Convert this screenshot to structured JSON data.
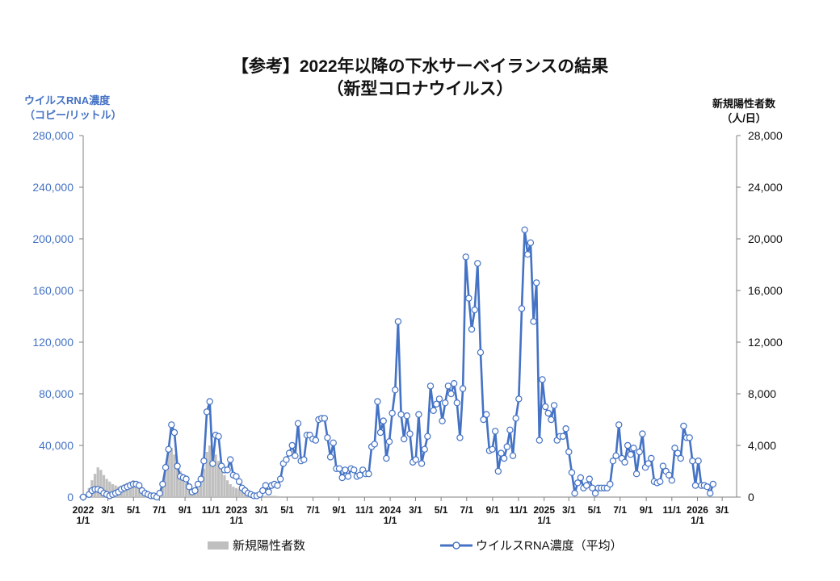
{
  "title": {
    "line1": "【参考】2022年以降の下水サーベイランスの結果",
    "line2": "（新型コロナウイルス）"
  },
  "left_axis_title": {
    "line1": "ウイルスRNA濃度",
    "line2": "（コピー/リットル）"
  },
  "right_axis_title": {
    "line1": "新規陽性者数",
    "line2": "（人/日）"
  },
  "legend": {
    "bars": "新規陽性者数",
    "line": "ウイルスRNA濃度（平均）"
  },
  "colors": {
    "line": "#4472C4",
    "bars": "#BFBFBF",
    "left_axis_text": "#4472C4",
    "right_axis_text": "#111111"
  },
  "chart_data": {
    "type": "line",
    "x_unit": "week index from 2022/1/1",
    "xlim": [
      0,
      222
    ],
    "y_left": {
      "label": "ウイルスRNA濃度（コピー/リットル）",
      "range": [
        0,
        280000
      ],
      "ticks": [
        "0",
        "40,000",
        "80,000",
        "120,000",
        "160,000",
        "200,000",
        "240,000",
        "280,000"
      ]
    },
    "y_right": {
      "label": "新規陽性者数（人/日）",
      "range": [
        0,
        28000
      ],
      "ticks": [
        "0",
        "4,000",
        "8,000",
        "12,000",
        "16,000",
        "20,000",
        "24,000",
        "28,000"
      ]
    },
    "x_ticks": [
      {
        "label": "2022",
        "label2": "1/1",
        "x": 0
      },
      {
        "label": "3/1",
        "x": 8.4
      },
      {
        "label": "5/1",
        "x": 17.1
      },
      {
        "label": "7/1",
        "x": 25.9
      },
      {
        "label": "9/1",
        "x": 34.6
      },
      {
        "label": "11/1",
        "x": 43.4
      },
      {
        "label": "2023",
        "label2": "1/1",
        "x": 52.1
      },
      {
        "label": "3/1",
        "x": 60.6
      },
      {
        "label": "5/1",
        "x": 69.3
      },
      {
        "label": "7/1",
        "x": 78.1
      },
      {
        "label": "9/1",
        "x": 86.9
      },
      {
        "label": "11/1",
        "x": 95.6
      },
      {
        "label": "2024",
        "label2": "1/1",
        "x": 104.3
      },
      {
        "label": "3/1",
        "x": 112.9
      },
      {
        "label": "5/1",
        "x": 121.6
      },
      {
        "label": "7/1",
        "x": 130.3
      },
      {
        "label": "9/1",
        "x": 139.1
      },
      {
        "label": "11/1",
        "x": 147.9
      },
      {
        "label": "2025",
        "label2": "1/1",
        "x": 156.6
      },
      {
        "label": "3/1",
        "x": 165.0
      },
      {
        "label": "5/1",
        "x": 173.7
      },
      {
        "label": "7/1",
        "x": 182.4
      },
      {
        "label": "9/1",
        "x": 191.3
      },
      {
        "label": "11/1",
        "x": 200.0
      },
      {
        "label": "2026",
        "label2": "1/1",
        "x": 208.7
      },
      {
        "label": "3/1",
        "x": 217.1
      }
    ],
    "series": [
      {
        "name": "ウイルスRNA濃度（平均）",
        "axis": "left",
        "points": [
          [
            0,
            0
          ],
          [
            2,
            2000
          ],
          [
            3,
            5000
          ],
          [
            4,
            6000
          ],
          [
            5,
            6000
          ],
          [
            6,
            5000
          ],
          [
            7,
            3000
          ],
          [
            8,
            2000
          ],
          [
            9,
            1000
          ],
          [
            10,
            2000
          ],
          [
            11,
            3000
          ],
          [
            12,
            4000
          ],
          [
            13,
            6000
          ],
          [
            14,
            7000
          ],
          [
            15,
            8000
          ],
          [
            16,
            9000
          ],
          [
            17,
            10000
          ],
          [
            18,
            10000
          ],
          [
            19,
            9000
          ],
          [
            20,
            5000
          ],
          [
            21,
            3000
          ],
          [
            22,
            2000
          ],
          [
            23,
            1000
          ],
          [
            24,
            1000
          ],
          [
            25,
            0
          ],
          [
            26,
            3000
          ],
          [
            27,
            10000
          ],
          [
            28,
            23000
          ],
          [
            29,
            37000
          ],
          [
            30,
            56000
          ],
          [
            31,
            50000
          ],
          [
            32,
            24000
          ],
          [
            33,
            16000
          ],
          [
            34,
            15000
          ],
          [
            35,
            14000
          ],
          [
            36,
            8000
          ],
          [
            37,
            4000
          ],
          [
            38,
            5000
          ],
          [
            39,
            10000
          ],
          [
            40,
            14000
          ],
          [
            41,
            28000
          ],
          [
            42,
            66000
          ],
          [
            43,
            74000
          ],
          [
            44,
            26000
          ],
          [
            45,
            48000
          ],
          [
            46,
            47000
          ],
          [
            47,
            24000
          ],
          [
            48,
            21000
          ],
          [
            49,
            21000
          ],
          [
            50,
            29000
          ],
          [
            51,
            17000
          ],
          [
            52,
            16000
          ],
          [
            53,
            12000
          ],
          [
            54,
            7000
          ],
          [
            55,
            5000
          ],
          [
            56,
            3000
          ],
          [
            57,
            2000
          ],
          [
            58,
            1000
          ],
          [
            59,
            1000
          ],
          [
            60,
            2000
          ],
          [
            61,
            5000
          ],
          [
            62,
            9000
          ],
          [
            63,
            4000
          ],
          [
            64,
            9000
          ],
          [
            65,
            10000
          ],
          [
            66,
            9000
          ],
          [
            67,
            14000
          ],
          [
            68,
            26000
          ],
          [
            69,
            29000
          ],
          [
            70,
            34000
          ],
          [
            71,
            40000
          ],
          [
            72,
            32000
          ],
          [
            73,
            57000
          ],
          [
            74,
            28000
          ],
          [
            75,
            29000
          ],
          [
            76,
            48000
          ],
          [
            77,
            48000
          ],
          [
            78,
            45000
          ],
          [
            79,
            44000
          ],
          [
            80,
            60000
          ],
          [
            81,
            61000
          ],
          [
            82,
            61000
          ],
          [
            83,
            46000
          ],
          [
            84,
            31000
          ],
          [
            85,
            42000
          ],
          [
            86,
            22000
          ],
          [
            87,
            22000
          ],
          [
            88,
            15000
          ],
          [
            89,
            21000
          ],
          [
            90,
            16000
          ],
          [
            91,
            22000
          ],
          [
            92,
            21000
          ],
          [
            93,
            16000
          ],
          [
            94,
            17000
          ],
          [
            95,
            21000
          ],
          [
            96,
            18000
          ],
          [
            97,
            18000
          ],
          [
            98,
            39000
          ],
          [
            99,
            41000
          ],
          [
            100,
            74000
          ],
          [
            101,
            50000
          ],
          [
            102,
            59000
          ],
          [
            103,
            30000
          ],
          [
            104,
            43000
          ],
          [
            105,
            65000
          ],
          [
            106,
            83000
          ],
          [
            107,
            136000
          ],
          [
            108,
            64000
          ],
          [
            109,
            45000
          ],
          [
            110,
            63000
          ],
          [
            111,
            49000
          ],
          [
            112,
            27000
          ],
          [
            113,
            29000
          ],
          [
            114,
            64000
          ],
          [
            115,
            26000
          ],
          [
            116,
            37000
          ],
          [
            117,
            47000
          ],
          [
            118,
            86000
          ],
          [
            119,
            67000
          ],
          [
            120,
            72000
          ],
          [
            121,
            76000
          ],
          [
            122,
            59000
          ],
          [
            123,
            73000
          ],
          [
            124,
            86000
          ],
          [
            125,
            80000
          ],
          [
            126,
            88000
          ],
          [
            127,
            73000
          ],
          [
            128,
            46000
          ],
          [
            129,
            84000
          ],
          [
            130,
            186000
          ],
          [
            131,
            154000
          ],
          [
            132,
            130000
          ],
          [
            133,
            145000
          ],
          [
            134,
            181000
          ],
          [
            135,
            112000
          ],
          [
            136,
            60000
          ],
          [
            137,
            64000
          ],
          [
            138,
            36000
          ],
          [
            139,
            37000
          ],
          [
            140,
            51000
          ],
          [
            141,
            20000
          ],
          [
            142,
            34000
          ],
          [
            143,
            30000
          ],
          [
            144,
            39000
          ],
          [
            145,
            52000
          ],
          [
            146,
            32000
          ],
          [
            147,
            61000
          ],
          [
            148,
            76000
          ],
          [
            149,
            146000
          ],
          [
            150,
            207000
          ],
          [
            151,
            188000
          ],
          [
            152,
            197000
          ],
          [
            153,
            136000
          ],
          [
            154,
            166000
          ],
          [
            155,
            44000
          ],
          [
            156,
            91000
          ],
          [
            157,
            70000
          ],
          [
            158,
            65000
          ],
          [
            159,
            60000
          ],
          [
            160,
            71000
          ],
          [
            161,
            44000
          ],
          [
            162,
            47000
          ],
          [
            163,
            47000
          ],
          [
            164,
            53000
          ],
          [
            165,
            35000
          ],
          [
            166,
            19000
          ],
          [
            167,
            3000
          ],
          [
            168,
            11000
          ],
          [
            169,
            15000
          ],
          [
            170,
            7000
          ],
          [
            171,
            9000
          ],
          [
            172,
            14000
          ],
          [
            173,
            7000
          ],
          [
            174,
            3000
          ],
          [
            175,
            7000
          ],
          [
            176,
            7000
          ],
          [
            177,
            7000
          ],
          [
            178,
            7000
          ],
          [
            179,
            10000
          ],
          [
            180,
            28000
          ],
          [
            181,
            32000
          ],
          [
            182,
            56000
          ],
          [
            183,
            30000
          ],
          [
            184,
            27000
          ],
          [
            185,
            40000
          ],
          [
            186,
            33000
          ],
          [
            187,
            38000
          ],
          [
            188,
            18000
          ],
          [
            189,
            35000
          ],
          [
            190,
            49000
          ],
          [
            191,
            23000
          ],
          [
            192,
            26000
          ],
          [
            193,
            30000
          ],
          [
            194,
            12000
          ],
          [
            195,
            11000
          ],
          [
            196,
            12000
          ],
          [
            197,
            24000
          ],
          [
            198,
            20000
          ],
          [
            199,
            17000
          ],
          [
            200,
            13000
          ],
          [
            201,
            38000
          ],
          [
            202,
            34000
          ],
          [
            203,
            30000
          ],
          [
            204,
            55000
          ],
          [
            205,
            46000
          ],
          [
            206,
            46000
          ],
          [
            207,
            28000
          ],
          [
            208,
            9000
          ],
          [
            209,
            28000
          ],
          [
            210,
            9000
          ],
          [
            211,
            9000
          ],
          [
            212,
            8000
          ],
          [
            213,
            3000
          ],
          [
            214,
            10000
          ]
        ]
      },
      {
        "name": "新規陽性者数",
        "axis": "right",
        "type": "bar",
        "points": [
          [
            0,
            100
          ],
          [
            2,
            700
          ],
          [
            3,
            1300
          ],
          [
            4,
            1800
          ],
          [
            5,
            2300
          ],
          [
            6,
            2100
          ],
          [
            7,
            1700
          ],
          [
            8,
            1400
          ],
          [
            9,
            1200
          ],
          [
            10,
            1000
          ],
          [
            11,
            900
          ],
          [
            12,
            800
          ],
          [
            13,
            900
          ],
          [
            14,
            1000
          ],
          [
            15,
            1100
          ],
          [
            16,
            1200
          ],
          [
            17,
            1300
          ],
          [
            18,
            1200
          ],
          [
            19,
            1000
          ],
          [
            20,
            700
          ],
          [
            21,
            500
          ],
          [
            22,
            300
          ],
          [
            23,
            200
          ],
          [
            24,
            150
          ],
          [
            25,
            200
          ],
          [
            26,
            500
          ],
          [
            27,
            1200
          ],
          [
            28,
            2400
          ],
          [
            29,
            3500
          ],
          [
            30,
            3800
          ],
          [
            31,
            3300
          ],
          [
            32,
            2600
          ],
          [
            33,
            2000
          ],
          [
            34,
            1500
          ],
          [
            35,
            1100
          ],
          [
            36,
            800
          ],
          [
            37,
            600
          ],
          [
            38,
            500
          ],
          [
            39,
            700
          ],
          [
            40,
            1200
          ],
          [
            41,
            2200
          ],
          [
            42,
            3500
          ],
          [
            43,
            4000
          ],
          [
            44,
            3700
          ],
          [
            45,
            3300
          ],
          [
            46,
            2800
          ],
          [
            47,
            2200
          ],
          [
            48,
            1700
          ],
          [
            49,
            1300
          ],
          [
            50,
            1000
          ],
          [
            51,
            800
          ],
          [
            52,
            700
          ],
          [
            53,
            600
          ],
          [
            54,
            450
          ],
          [
            55,
            350
          ],
          [
            56,
            250
          ],
          [
            57,
            200
          ],
          [
            58,
            150
          ],
          [
            59,
            120
          ],
          [
            60,
            100
          ],
          [
            61,
            100
          ],
          [
            62,
            100
          ],
          [
            63,
            100
          ],
          [
            64,
            100
          ],
          [
            65,
            100
          ],
          [
            66,
            80
          ],
          [
            67,
            60
          ]
        ]
      }
    ]
  }
}
